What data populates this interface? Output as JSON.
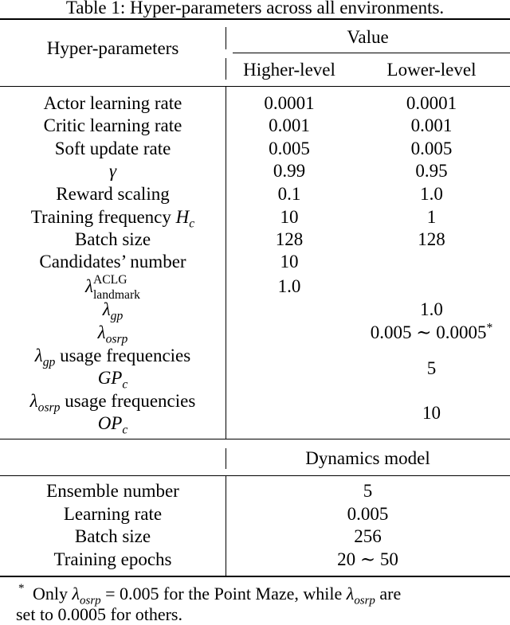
{
  "caption": "Table 1: Hyper-parameters across all environments.",
  "header": {
    "param_col": "Hyper-parameters",
    "value_group": "Value",
    "higher": "Higher-level",
    "lower": "Lower-level"
  },
  "rows": [
    {
      "name": "Actor learning rate",
      "higher": "0.0001",
      "lower": "0.0001"
    },
    {
      "name": "Critic learning rate",
      "higher": "0.001",
      "lower": "0.001"
    },
    {
      "name": "Soft update rate",
      "higher": "0.005",
      "lower": "0.005"
    },
    {
      "name": "γ",
      "higher": "0.99",
      "lower": "0.95"
    },
    {
      "name": "Reward scaling",
      "higher": "0.1",
      "lower": "1.0"
    },
    {
      "name": "Training frequency ",
      "name_math": "H",
      "name_sub": "c",
      "higher": "10",
      "lower": "1"
    },
    {
      "name": "Batch size",
      "higher": "128",
      "lower": "128"
    },
    {
      "name": "Candidates’ number",
      "higher": "10",
      "lower": ""
    },
    {
      "name_math": "λ",
      "name_sub": "landmark",
      "name_sup": "ACLG",
      "higher": "1.0",
      "lower": ""
    },
    {
      "name_math": "λ",
      "name_sub": "gp",
      "higher": "",
      "lower": "1.0"
    },
    {
      "name_math": "λ",
      "name_sub": "osrp",
      "higher": "",
      "lower": "0.005 ∼ 0.0005",
      "lower_sup": "*"
    },
    {
      "name_math": "λ",
      "name_sub": "gp",
      "name_rest": " usage frequencies",
      "name_line2_math": "GP",
      "name_line2_sub": "c",
      "higher": "",
      "lower": "5"
    },
    {
      "name_math": "λ",
      "name_sub": "osrp",
      "name_rest": " usage frequencies",
      "name_line2_math": "OP",
      "name_line2_sub": "c",
      "higher": "",
      "lower": "10"
    }
  ],
  "dynamics": {
    "header": "Dynamics model",
    "rows": [
      {
        "name": "Ensemble number",
        "value": "5"
      },
      {
        "name": "Learning rate",
        "value": "0.005"
      },
      {
        "name": "Batch size",
        "value": "256"
      },
      {
        "name": "Training epochs",
        "value": "20 ∼ 50"
      }
    ]
  },
  "footnote": {
    "marker": "*",
    "t1": "Only ",
    "m1": "λ",
    "m1_sub": "osrp",
    "m1_eq": " = 0.005",
    "t2": " for the Point Maze, while ",
    "m2": "λ",
    "m2_sub": "osrp",
    "t3": " are",
    "line2": "set to 0.0005 for others."
  }
}
